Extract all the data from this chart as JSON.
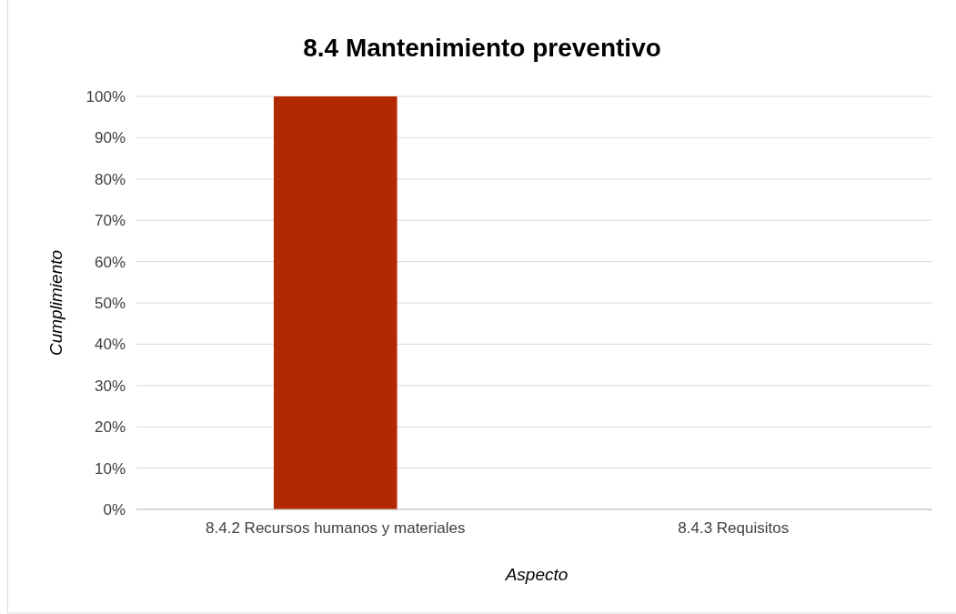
{
  "chart_data": {
    "type": "bar",
    "title": "8.4 Mantenimiento preventivo",
    "xlabel": "Aspecto",
    "ylabel": "Cumplimiento",
    "categories": [
      "8.4.2 Recursos humanos y materiales",
      "8.4.3 Requisitos"
    ],
    "values": [
      100,
      0
    ],
    "color": "#b22800",
    "ylim": [
      0,
      100
    ],
    "yticks": [
      {
        "value": 0,
        "label": "0%"
      },
      {
        "value": 10,
        "label": "10%"
      },
      {
        "value": 20,
        "label": "20%"
      },
      {
        "value": 30,
        "label": "30%"
      },
      {
        "value": 40,
        "label": "40%"
      },
      {
        "value": 50,
        "label": "50%"
      },
      {
        "value": 60,
        "label": "60%"
      },
      {
        "value": 70,
        "label": "70%"
      },
      {
        "value": 80,
        "label": "80%"
      },
      {
        "value": 90,
        "label": "90%"
      },
      {
        "value": 100,
        "label": "100%"
      }
    ],
    "grid": "y"
  }
}
